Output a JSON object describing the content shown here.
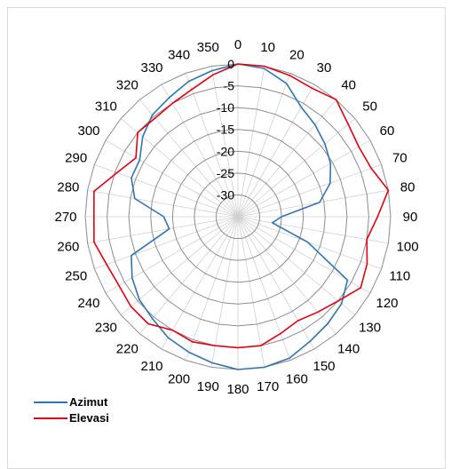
{
  "chart_data": {
    "type": "radar",
    "angle_labels": [
      "0",
      "10",
      "20",
      "30",
      "40",
      "50",
      "60",
      "70",
      "80",
      "90",
      "100",
      "110",
      "120",
      "130",
      "140",
      "150",
      "160",
      "170",
      "180",
      "190",
      "200",
      "210",
      "220",
      "230",
      "240",
      "250",
      "260",
      "270",
      "280",
      "290",
      "300",
      "310",
      "320",
      "330",
      "340",
      "350"
    ],
    "radial_ticks": [
      "0",
      "-5",
      "-10",
      "-15",
      "-20",
      "-25",
      "-30"
    ],
    "rlim": [
      -35,
      0
    ],
    "series": [
      {
        "name": "Azimut",
        "color": "#2e75b6",
        "values": [
          0,
          -0.5,
          -2.5,
          -6,
          -7.5,
          -9,
          -10.5,
          -12.5,
          -16,
          -25,
          -27,
          -18,
          -6,
          -4,
          -3,
          -2,
          -0.5,
          0,
          0,
          -1,
          -2,
          -3,
          -4.5,
          -5.5,
          -7,
          -9,
          -19,
          -18,
          -11,
          -9,
          -9,
          -6.5,
          -4.5,
          -3.5,
          -2,
          -1
        ]
      },
      {
        "name": "Elevasi",
        "color": "#e3000f",
        "values": [
          0,
          0,
          -0.5,
          -1,
          0,
          -2,
          -3,
          -2.5,
          0,
          -3,
          -5,
          -3.5,
          -2.5,
          -5,
          -6.5,
          -7.5,
          -6.5,
          -5,
          -5,
          -5,
          -4.5,
          -5,
          -3,
          -3,
          -3.5,
          -3,
          -1.5,
          -2,
          -1.5,
          -5.5,
          -8,
          -5,
          -5.5,
          -5,
          -4,
          -2
        ]
      }
    ],
    "grid": true,
    "legend_position": "bottom-left"
  }
}
